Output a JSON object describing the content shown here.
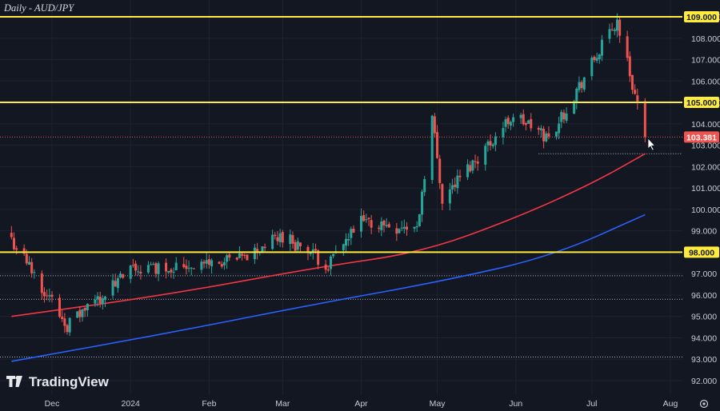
{
  "chart_data": {
    "type": "candlestick",
    "title": "Daily - AUD/JPY",
    "brand": "TradingView",
    "ylim": [
      91.6,
      109.6
    ],
    "y_ticks": [
      "109.000",
      "108.000",
      "107.000",
      "106.000",
      "105.000",
      "104.000",
      "103.000",
      "102.000",
      "101.000",
      "100.000",
      "99.000",
      "98.000",
      "97.000",
      "96.000",
      "95.000",
      "94.000",
      "93.000",
      "92.000"
    ],
    "x_ticks": [
      "Dec",
      "2024",
      "Feb",
      "Mar",
      "Apr",
      "May",
      "Jun",
      "Jul",
      "Aug"
    ],
    "last_price": "103.381",
    "colors": {
      "up": "#26a69a",
      "down": "#ef5350",
      "level": "#ffeb3b",
      "ma_red": "#f23645",
      "ma_blue": "#2962ff",
      "background": "#131722"
    },
    "horizontal_levels": [
      109.0,
      105.0,
      98.0
    ],
    "price_badges": [
      "109.000",
      "105.000",
      "98.000",
      "103.381"
    ],
    "dotted_levels": [
      103.381,
      102.6,
      96.9,
      95.8,
      93.1
    ],
    "candles_summary": {
      "start_date": "2023-11-15",
      "end_date": "2024-07-22",
      "anchors": [
        {
          "date": "2023-11-15",
          "close": 98.6
        },
        {
          "date": "2023-12-07",
          "close": 94.6
        },
        {
          "date": "2024-01-02",
          "close": 97.2
        },
        {
          "date": "2024-02-13",
          "close": 97.6
        },
        {
          "date": "2024-03-01",
          "close": 98.8
        },
        {
          "date": "2024-03-19",
          "close": 97.4
        },
        {
          "date": "2024-04-01",
          "close": 99.4
        },
        {
          "date": "2024-04-23",
          "close": 99.1
        },
        {
          "date": "2024-04-29",
          "close": 104.3
        },
        {
          "date": "2024-05-03",
          "close": 100.5
        },
        {
          "date": "2024-05-31",
          "close": 104.4
        },
        {
          "date": "2024-06-14",
          "close": 103.3
        },
        {
          "date": "2024-07-11",
          "close": 108.8
        },
        {
          "date": "2024-07-22",
          "close": 103.381
        }
      ]
    },
    "series": [
      {
        "points": [
          {
            "date": "2023-11-15",
            "y": 95.0
          },
          {
            "date": "2024-01-15",
            "y": 96.0
          },
          {
            "date": "2024-03-15",
            "y": 97.3
          },
          {
            "date": "2024-04-25",
            "y": 98.0
          },
          {
            "date": "2024-06-01",
            "y": 99.6
          },
          {
            "date": "2024-07-01",
            "y": 101.2
          },
          {
            "date": "2024-07-22",
            "y": 102.6
          }
        ]
      },
      {
        "points": [
          {
            "date": "2023-11-15",
            "y": 92.9
          },
          {
            "date": "2024-01-15",
            "y": 94.2
          },
          {
            "date": "2024-03-15",
            "y": 95.6
          },
          {
            "date": "2024-05-01",
            "y": 96.6
          },
          {
            "date": "2024-06-15",
            "y": 97.8
          },
          {
            "date": "2024-07-22",
            "y": 99.75
          }
        ]
      }
    ]
  }
}
